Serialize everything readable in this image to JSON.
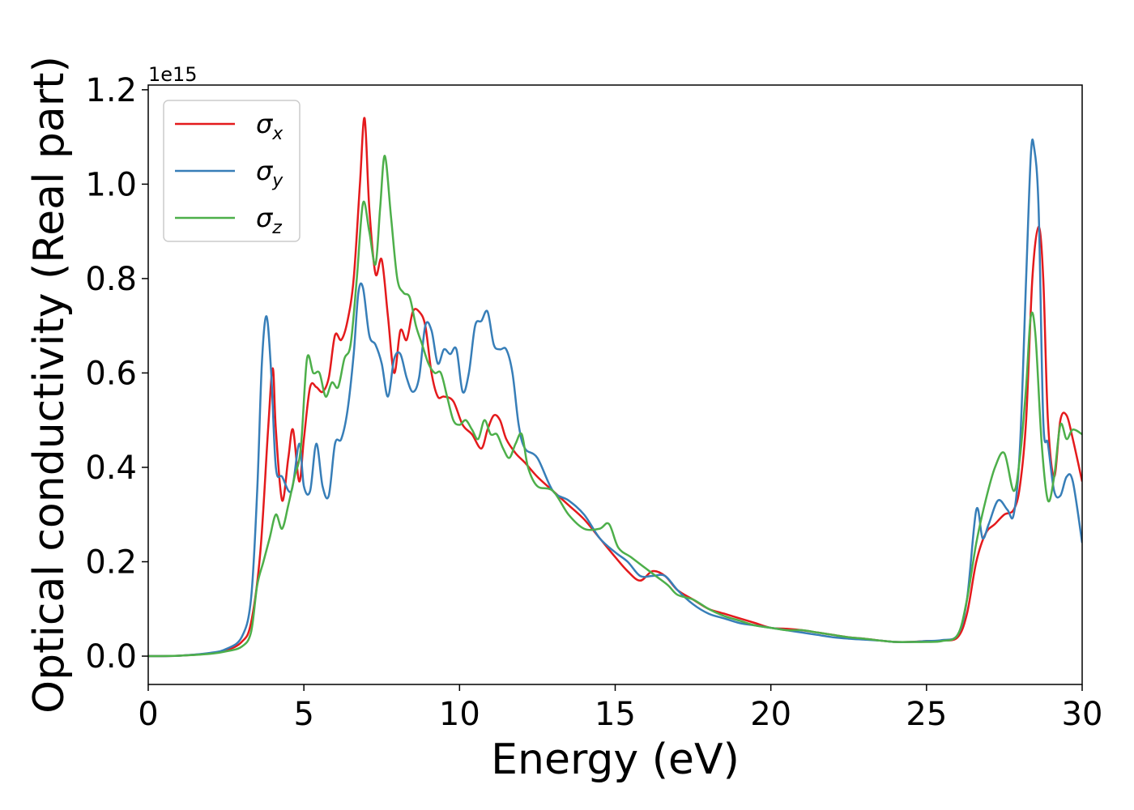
{
  "chart_data": {
    "type": "line",
    "xlabel": "Energy (eV)",
    "ylabel": "Optical conductivity (Real part)",
    "y_offset_text": "1e15",
    "xlim": [
      0,
      30
    ],
    "ylim": [
      -0.06,
      1.21
    ],
    "xticks": [
      0,
      5,
      10,
      15,
      20,
      25,
      30
    ],
    "yticks": [
      0.0,
      0.2,
      0.4,
      0.6,
      0.8,
      1.0,
      1.2
    ],
    "xtick_labels": [
      "0",
      "5",
      "10",
      "15",
      "20",
      "25",
      "30"
    ],
    "ytick_labels": [
      "0.0",
      "0.2",
      "0.4",
      "0.6",
      "0.8",
      "1.0",
      "1.2"
    ],
    "grid": false,
    "legend_position": "top-left",
    "series": [
      {
        "name": "σx",
        "name_base": "σ",
        "name_sub": "x",
        "color": "#e41a1c",
        "x": [
          0,
          1,
          2,
          2.5,
          3,
          3.3,
          3.6,
          3.85,
          4.0,
          4.1,
          4.3,
          4.5,
          4.65,
          4.85,
          5.0,
          5.2,
          5.4,
          5.6,
          5.8,
          6.0,
          6.2,
          6.4,
          6.6,
          6.8,
          6.95,
          7.1,
          7.3,
          7.5,
          7.7,
          7.9,
          8.1,
          8.3,
          8.5,
          8.7,
          8.9,
          9.1,
          9.3,
          9.5,
          9.8,
          10.1,
          10.4,
          10.7,
          10.9,
          11.1,
          11.3,
          11.5,
          11.8,
          12.1,
          12.5,
          13.0,
          13.5,
          14.0,
          14.5,
          15.0,
          15.4,
          15.8,
          16.2,
          16.6,
          17.0,
          17.5,
          18.0,
          18.5,
          19.0,
          19.5,
          20.0,
          20.5,
          21.0,
          21.5,
          22.0,
          22.5,
          23.0,
          23.5,
          24.0,
          24.5,
          25.0,
          25.5,
          26.0,
          26.3,
          26.6,
          26.9,
          27.2,
          27.5,
          27.8,
          28.0,
          28.2,
          28.4,
          28.6,
          28.75,
          28.9,
          29.1,
          29.3,
          29.5,
          29.7,
          30.0
        ],
        "y": [
          0.0,
          0.001,
          0.006,
          0.012,
          0.03,
          0.07,
          0.22,
          0.48,
          0.61,
          0.48,
          0.33,
          0.42,
          0.48,
          0.37,
          0.46,
          0.57,
          0.57,
          0.56,
          0.59,
          0.68,
          0.67,
          0.71,
          0.8,
          1.0,
          1.14,
          0.95,
          0.81,
          0.84,
          0.72,
          0.6,
          0.69,
          0.67,
          0.73,
          0.73,
          0.7,
          0.6,
          0.55,
          0.55,
          0.54,
          0.49,
          0.47,
          0.44,
          0.48,
          0.51,
          0.5,
          0.46,
          0.43,
          0.41,
          0.38,
          0.35,
          0.32,
          0.29,
          0.25,
          0.21,
          0.18,
          0.16,
          0.18,
          0.17,
          0.14,
          0.12,
          0.1,
          0.09,
          0.08,
          0.07,
          0.06,
          0.058,
          0.055,
          0.05,
          0.045,
          0.04,
          0.037,
          0.033,
          0.03,
          0.03,
          0.032,
          0.033,
          0.04,
          0.09,
          0.2,
          0.26,
          0.28,
          0.3,
          0.31,
          0.36,
          0.5,
          0.8,
          0.91,
          0.8,
          0.5,
          0.38,
          0.5,
          0.51,
          0.46,
          0.37
        ]
      },
      {
        "name": "σy",
        "name_base": "σ",
        "name_sub": "y",
        "color": "#377eb8",
        "x": [
          0,
          1,
          2,
          2.5,
          3,
          3.3,
          3.5,
          3.65,
          3.8,
          3.95,
          4.1,
          4.3,
          4.6,
          4.85,
          5.0,
          5.2,
          5.4,
          5.6,
          5.8,
          6.0,
          6.2,
          6.4,
          6.6,
          6.75,
          6.9,
          7.1,
          7.3,
          7.5,
          7.7,
          7.9,
          8.1,
          8.3,
          8.5,
          8.7,
          8.9,
          9.1,
          9.3,
          9.5,
          9.7,
          9.9,
          10.1,
          10.3,
          10.5,
          10.7,
          10.9,
          11.1,
          11.3,
          11.5,
          11.7,
          11.9,
          12.1,
          12.5,
          13.0,
          13.5,
          14.0,
          14.5,
          15.0,
          15.4,
          15.8,
          16.2,
          16.6,
          17.0,
          17.5,
          18.0,
          18.5,
          19.0,
          19.5,
          20.0,
          20.5,
          21.0,
          21.5,
          22.0,
          22.5,
          23.0,
          23.5,
          24.0,
          24.5,
          25.0,
          25.5,
          26.0,
          26.3,
          26.6,
          26.8,
          27.0,
          27.3,
          27.6,
          27.8,
          28.0,
          28.2,
          28.35,
          28.45,
          28.6,
          28.75,
          28.9,
          29.1,
          29.3,
          29.5,
          29.7,
          30.0
        ],
        "y": [
          0.0,
          0.001,
          0.007,
          0.015,
          0.04,
          0.12,
          0.35,
          0.62,
          0.72,
          0.6,
          0.4,
          0.38,
          0.35,
          0.45,
          0.36,
          0.35,
          0.45,
          0.36,
          0.34,
          0.45,
          0.46,
          0.52,
          0.64,
          0.77,
          0.78,
          0.68,
          0.66,
          0.62,
          0.55,
          0.63,
          0.64,
          0.59,
          0.56,
          0.59,
          0.7,
          0.69,
          0.62,
          0.65,
          0.64,
          0.65,
          0.56,
          0.6,
          0.7,
          0.71,
          0.73,
          0.66,
          0.65,
          0.65,
          0.6,
          0.49,
          0.44,
          0.42,
          0.35,
          0.33,
          0.3,
          0.25,
          0.22,
          0.2,
          0.17,
          0.17,
          0.17,
          0.14,
          0.11,
          0.09,
          0.08,
          0.07,
          0.065,
          0.06,
          0.055,
          0.05,
          0.045,
          0.04,
          0.037,
          0.035,
          0.033,
          0.03,
          0.03,
          0.032,
          0.034,
          0.045,
          0.12,
          0.31,
          0.25,
          0.28,
          0.33,
          0.31,
          0.3,
          0.44,
          0.8,
          1.06,
          1.08,
          0.95,
          0.5,
          0.45,
          0.35,
          0.34,
          0.38,
          0.37,
          0.24
        ]
      },
      {
        "name": "σz",
        "name_base": "σ",
        "name_sub": "z",
        "color": "#4daf4a",
        "x": [
          0,
          1,
          2,
          2.5,
          3,
          3.3,
          3.5,
          3.7,
          3.9,
          4.1,
          4.3,
          4.5,
          4.7,
          4.9,
          5.1,
          5.3,
          5.5,
          5.7,
          5.9,
          6.1,
          6.3,
          6.5,
          6.7,
          6.9,
          7.1,
          7.3,
          7.45,
          7.6,
          7.8,
          8.0,
          8.2,
          8.4,
          8.6,
          8.8,
          9.0,
          9.2,
          9.4,
          9.6,
          9.8,
          10.0,
          10.2,
          10.4,
          10.6,
          10.8,
          11.0,
          11.2,
          11.4,
          11.6,
          11.8,
          12.0,
          12.2,
          12.5,
          13.0,
          13.5,
          14.0,
          14.5,
          14.8,
          15.1,
          15.5,
          15.9,
          16.3,
          16.7,
          17.0,
          17.5,
          18.0,
          18.5,
          19.0,
          19.5,
          20.0,
          20.5,
          21.0,
          21.5,
          22.0,
          22.5,
          23.0,
          23.5,
          24.0,
          24.5,
          25.0,
          25.5,
          26.0,
          26.3,
          26.6,
          26.9,
          27.2,
          27.5,
          27.8,
          28.0,
          28.2,
          28.35,
          28.5,
          28.7,
          28.9,
          29.1,
          29.3,
          29.5,
          29.7,
          30.0
        ],
        "y": [
          0.0,
          0.001,
          0.005,
          0.01,
          0.02,
          0.05,
          0.15,
          0.2,
          0.25,
          0.3,
          0.27,
          0.32,
          0.38,
          0.44,
          0.63,
          0.6,
          0.6,
          0.55,
          0.58,
          0.57,
          0.63,
          0.66,
          0.8,
          0.96,
          0.9,
          0.83,
          0.95,
          1.06,
          0.93,
          0.8,
          0.77,
          0.76,
          0.7,
          0.66,
          0.62,
          0.6,
          0.6,
          0.55,
          0.5,
          0.49,
          0.5,
          0.48,
          0.46,
          0.5,
          0.47,
          0.47,
          0.44,
          0.42,
          0.45,
          0.47,
          0.4,
          0.36,
          0.35,
          0.3,
          0.27,
          0.27,
          0.28,
          0.23,
          0.21,
          0.19,
          0.17,
          0.15,
          0.13,
          0.12,
          0.1,
          0.085,
          0.075,
          0.065,
          0.06,
          0.055,
          0.055,
          0.05,
          0.045,
          0.04,
          0.037,
          0.033,
          0.03,
          0.03,
          0.03,
          0.032,
          0.045,
          0.12,
          0.24,
          0.33,
          0.4,
          0.43,
          0.35,
          0.42,
          0.57,
          0.72,
          0.68,
          0.45,
          0.33,
          0.38,
          0.49,
          0.46,
          0.48,
          0.47
        ]
      }
    ]
  }
}
